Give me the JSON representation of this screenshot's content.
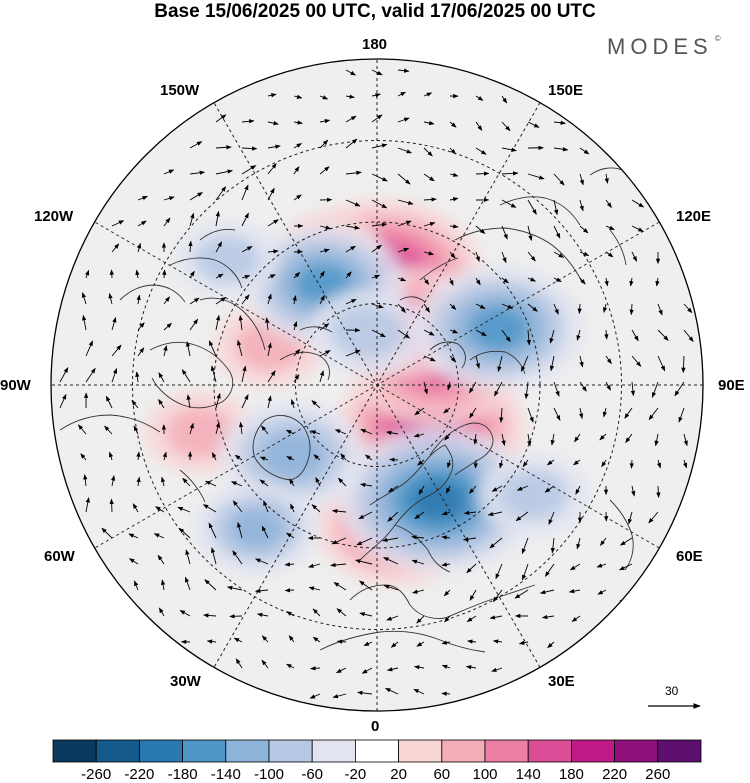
{
  "title": "Base 15/06/2025 00 UTC, valid 17/06/2025 00 UTC",
  "brand": "MODES",
  "brand_mark": "©",
  "longitude_labels": {
    "lon_180": "180",
    "lon_150E": "150E",
    "lon_120E": "120E",
    "lon_90E": "90E",
    "lon_60E": "60E",
    "lon_30E": "30E",
    "lon_0": "0",
    "lon_30W": "30W",
    "lon_60W": "60W",
    "lon_90W": "90W",
    "lon_120W": "120W",
    "lon_150W": "150W"
  },
  "wind_reference_value": "30",
  "colorbar": {
    "labels": [
      "-260",
      "-220",
      "-180",
      "-140",
      "-100",
      "-60",
      "-20",
      "20",
      "60",
      "100",
      "140",
      "180",
      "220",
      "260"
    ],
    "colors": [
      "#0b3a5e",
      "#145a8a",
      "#2a78b0",
      "#4f97c8",
      "#8db3d8",
      "#b6c8e3",
      "#e2e4f0",
      "#ffffff",
      "#f8d6d6",
      "#f3aeb8",
      "#ec7fa6",
      "#dc4d98",
      "#bf1b87",
      "#8f0f7b",
      "#5d0f6e"
    ]
  },
  "anomaly_centers": [
    {
      "lon": 178,
      "lat": 63,
      "value": 190,
      "label": "positive centre near 180 meridian"
    },
    {
      "lon": 50,
      "lat": 73,
      "value": 170
    },
    {
      "lon": 112,
      "lat": 74,
      "value": 150
    },
    {
      "lon": 8,
      "lat": 55,
      "value": 130
    },
    {
      "lon": 150,
      "lat": 72,
      "value": 110
    },
    {
      "lon": -75,
      "lat": 45,
      "value": 60
    },
    {
      "lon": -110,
      "lat": 62,
      "value": 60
    },
    {
      "lon": -160,
      "lat": 55,
      "value": 50
    },
    {
      "lon": 28,
      "lat": 58,
      "value": -180
    },
    {
      "lon": 115,
      "lat": 57,
      "value": -140
    },
    {
      "lon": -152,
      "lat": 62,
      "value": -130
    },
    {
      "lon": -50,
      "lat": 63,
      "value": -110
    },
    {
      "lon": -40,
      "lat": 44,
      "value": -80
    },
    {
      "lon": -170,
      "lat": 77,
      "value": -70
    },
    {
      "lon": 55,
      "lat": 43,
      "value": -60
    },
    {
      "lon": -130,
      "lat": 42,
      "value": -50
    }
  ]
}
